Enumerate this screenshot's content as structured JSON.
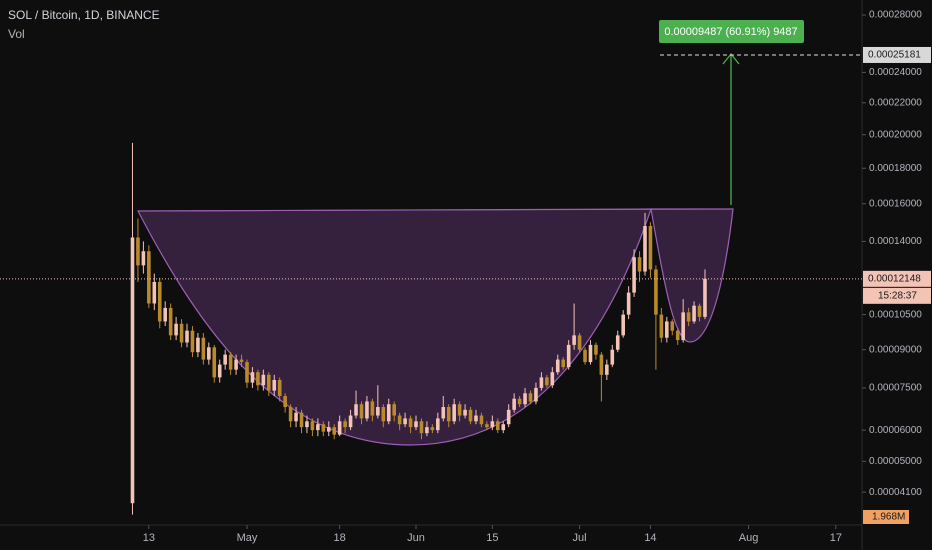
{
  "chart_data": {
    "type": "candlestick",
    "title": "SOL / Bitcoin, 1D, BINANCE",
    "volume_title": "Vol",
    "volume_label": "1.968M",
    "countdown": "15:28:37",
    "annotation": "0.00009487 (60.91%) 9487",
    "target_price": 0.00025181,
    "y_scale": "sqrt",
    "grid": false,
    "up_color": "#f3c3b6",
    "down_color": "#b98a2c",
    "ylim": [
      3.24e-05,
      0.000291
    ],
    "yticks": [
      {
        "value": 0.00028,
        "label": "0.00028000"
      },
      {
        "value": 0.00024,
        "label": "0.00024000"
      },
      {
        "value": 0.00022,
        "label": "0.00022000"
      },
      {
        "value": 0.0002,
        "label": "0.00020000"
      },
      {
        "value": 0.00018,
        "label": "0.00018000"
      },
      {
        "value": 0.00016,
        "label": "0.00016000"
      },
      {
        "value": 0.00014,
        "label": "0.00014000"
      },
      {
        "value": 0.000105,
        "label": "0.00010500"
      },
      {
        "value": 9e-05,
        "label": "0.00009000"
      },
      {
        "value": 7.5e-05,
        "label": "0.00007500"
      },
      {
        "value": 6e-05,
        "label": "0.00006000"
      },
      {
        "value": 5e-05,
        "label": "0.00005000"
      },
      {
        "value": 4.1e-05,
        "label": "0.00004100"
      }
    ],
    "xlim": [
      -24.3,
      133.8
    ],
    "xticks": [
      {
        "value": 3,
        "label": "13"
      },
      {
        "value": 21,
        "label": "May"
      },
      {
        "value": 38,
        "label": "18"
      },
      {
        "value": 52,
        "label": "Jun"
      },
      {
        "value": 66,
        "label": "15"
      },
      {
        "value": 82,
        "label": "Jul"
      },
      {
        "value": 95,
        "label": "14"
      },
      {
        "value": 113,
        "label": "Aug"
      },
      {
        "value": 129,
        "label": "17"
      }
    ],
    "candles": [
      [
        3.8e-05,
        0.000195,
        3.5e-05,
        0.000142
      ],
      [
        0.000142,
        0.000152,
        0.00012,
        0.000128
      ],
      [
        0.000128,
        0.00014,
        0.000124,
        0.000135
      ],
      [
        0.000135,
        0.000138,
        0.000108,
        0.00011
      ],
      [
        0.00011,
        0.000124,
        0.000107,
        0.00012
      ],
      [
        0.00012,
        0.000122,
        9.9e-05,
        0.000102
      ],
      [
        0.000102,
        0.000111,
        0.0001,
        0.000108
      ],
      [
        0.000108,
        0.00011,
        9.4e-05,
        9.6e-05
      ],
      [
        9.6e-05,
        0.000104,
        9.4e-05,
        0.000101
      ],
      [
        0.000101,
        0.000103,
        9.1e-05,
        9.3e-05
      ],
      [
        9.3e-05,
        0.000101,
        9.1e-05,
        9.8e-05
      ],
      [
        9.8e-05,
        0.0001,
        8.7e-05,
        8.9e-05
      ],
      [
        8.9e-05,
        9.7e-05,
        8.7e-05,
        9.5e-05
      ],
      [
        9.5e-05,
        9.7e-05,
        8.4e-05,
        8.6e-05
      ],
      [
        8.6e-05,
        9.3e-05,
        8.4e-05,
        9.1e-05
      ],
      [
        9.1e-05,
        9.2e-05,
        7.7e-05,
        7.9e-05
      ],
      [
        7.9e-05,
        8.6e-05,
        7.7e-05,
        8.4e-05
      ],
      [
        8.4e-05,
        9e-05,
        8.2e-05,
        8.8e-05
      ],
      [
        8.8e-05,
        8.9e-05,
        8e-05,
        8.2e-05
      ],
      [
        8.2e-05,
        8.8e-05,
        8e-05,
        8.6e-05
      ],
      [
        8.6e-05,
        8.8e-05,
        8.3e-05,
        8.5e-05
      ],
      [
        8.5e-05,
        8.6e-05,
        7.5e-05,
        7.7e-05
      ],
      [
        7.7e-05,
        8.3e-05,
        7.5e-05,
        8.1e-05
      ],
      [
        8.1e-05,
        8.2e-05,
        7.4e-05,
        7.6e-05
      ],
      [
        7.6e-05,
        8.2e-05,
        7.4e-05,
        8e-05
      ],
      [
        8e-05,
        8.1e-05,
        7.2e-05,
        7.4e-05
      ],
      [
        7.4e-05,
        8e-05,
        7.2e-05,
        7.8e-05
      ],
      [
        7.8e-05,
        7.9e-05,
        7e-05,
        7.2e-05
      ],
      [
        7.2e-05,
        7.3e-05,
        6.6e-05,
        6.8e-05
      ],
      [
        6.8e-05,
        6.9e-05,
        6.1e-05,
        6.3e-05
      ],
      [
        6.3e-05,
        6.8e-05,
        6.1e-05,
        6.6e-05
      ],
      [
        6.6e-05,
        6.7e-05,
        5.9e-05,
        6.1e-05
      ],
      [
        6.1e-05,
        6.5e-05,
        5.9e-05,
        6.3e-05
      ],
      [
        6.3e-05,
        6.4e-05,
        5.8e-05,
        6e-05
      ],
      [
        6e-05,
        6.4e-05,
        5.8e-05,
        6.2e-05
      ],
      [
        6.2e-05,
        6.3e-05,
        5.8e-05,
        5.95e-05
      ],
      [
        5.95e-05,
        6.3e-05,
        5.8e-05,
        6.1e-05
      ],
      [
        6.1e-05,
        6.2e-05,
        5.7e-05,
        5.85e-05
      ],
      [
        5.85e-05,
        6.5e-05,
        5.8e-05,
        6.3e-05
      ],
      [
        6.3e-05,
        6.4e-05,
        5.9e-05,
        6.1e-05
      ],
      [
        6.1e-05,
        6.7e-05,
        6e-05,
        6.5e-05
      ],
      [
        6.5e-05,
        7.4e-05,
        6.4e-05,
        6.9e-05
      ],
      [
        6.9e-05,
        7e-05,
        6.2e-05,
        6.4e-05
      ],
      [
        6.4e-05,
        7.2e-05,
        6.3e-05,
        7e-05
      ],
      [
        7e-05,
        7.1e-05,
        6.3e-05,
        6.5e-05
      ],
      [
        6.5e-05,
        7.6e-05,
        6.4e-05,
        6.8e-05
      ],
      [
        6.8e-05,
        6.9e-05,
        6.1e-05,
        6.3e-05
      ],
      [
        6.3e-05,
        7.1e-05,
        6.2e-05,
        6.9e-05
      ],
      [
        6.9e-05,
        7e-05,
        6.3e-05,
        6.5e-05
      ],
      [
        6.5e-05,
        6.6e-05,
        6e-05,
        6.2e-05
      ],
      [
        6.2e-05,
        6.6e-05,
        6.1e-05,
        6.4e-05
      ],
      [
        6.4e-05,
        6.5e-05,
        5.9e-05,
        6.1e-05
      ],
      [
        6.1e-05,
        6.5e-05,
        6e-05,
        6.3e-05
      ],
      [
        6.3e-05,
        6.4e-05,
        5.7e-05,
        5.9e-05
      ],
      [
        5.9e-05,
        6.3e-05,
        5.8e-05,
        6.1e-05
      ],
      [
        6.1e-05,
        6.2e-05,
        5.9e-05,
        6e-05
      ],
      [
        6e-05,
        6.6e-05,
        5.9e-05,
        6.4e-05
      ],
      [
        6.4e-05,
        7.2e-05,
        6.3e-05,
        6.8e-05
      ],
      [
        6.8e-05,
        6.9e-05,
        6.1e-05,
        6.3e-05
      ],
      [
        6.3e-05,
        7.1e-05,
        6.2e-05,
        6.9e-05
      ],
      [
        6.9e-05,
        7e-05,
        6.3e-05,
        6.5e-05
      ],
      [
        6.5e-05,
        6.9e-05,
        6.4e-05,
        6.7e-05
      ],
      [
        6.7e-05,
        6.8e-05,
        6.2e-05,
        6.3e-05
      ],
      [
        6.3e-05,
        6.7e-05,
        6.2e-05,
        6.5e-05
      ],
      [
        6.5e-05,
        6.6e-05,
        6.1e-05,
        6.2e-05
      ],
      [
        6.2e-05,
        6.3e-05,
        6e-05,
        6.1e-05
      ],
      [
        6.1e-05,
        6.5e-05,
        6e-05,
        6.3e-05
      ],
      [
        6.3e-05,
        6.4e-05,
        5.9e-05,
        6e-05
      ],
      [
        6e-05,
        6.3e-05,
        5.9e-05,
        6.2e-05
      ],
      [
        6.2e-05,
        6.9e-05,
        6.1e-05,
        6.7e-05
      ],
      [
        6.7e-05,
        7.3e-05,
        6.6e-05,
        7.1e-05
      ],
      [
        7.1e-05,
        7.2e-05,
        6.8e-05,
        6.9e-05
      ],
      [
        6.9e-05,
        7.5e-05,
        6.8e-05,
        7.3e-05
      ],
      [
        7.3e-05,
        7.4e-05,
        6.9e-05,
        7e-05
      ],
      [
        7e-05,
        7.7e-05,
        6.9e-05,
        7.5e-05
      ],
      [
        7.5e-05,
        8.1e-05,
        7.4e-05,
        7.9e-05
      ],
      [
        7.9e-05,
        8e-05,
        7.5e-05,
        7.6e-05
      ],
      [
        7.6e-05,
        8.3e-05,
        7.5e-05,
        8.1e-05
      ],
      [
        8.1e-05,
        8.8e-05,
        8e-05,
        8.6e-05
      ],
      [
        8.6e-05,
        8.7e-05,
        8.2e-05,
        8.3e-05
      ],
      [
        8.3e-05,
        9.4e-05,
        8.2e-05,
        9.2e-05
      ],
      [
        9.2e-05,
        0.00011,
        9e-05,
        9.6e-05
      ],
      [
        9.6e-05,
        9.7e-05,
        8.9e-05,
        9e-05
      ],
      [
        9e-05,
        9.1e-05,
        8.4e-05,
        8.5e-05
      ],
      [
        8.5e-05,
        9.4e-05,
        8.4e-05,
        9.2e-05
      ],
      [
        9.2e-05,
        9.3e-05,
        8.6e-05,
        8.8e-05
      ],
      [
        8.8e-05,
        8.9e-05,
        7e-05,
        8e-05
      ],
      [
        8e-05,
        8.6e-05,
        7.8e-05,
        8.4e-05
      ],
      [
        8.4e-05,
        9.2e-05,
        8.3e-05,
        9e-05
      ],
      [
        9e-05,
        9.8e-05,
        8.9e-05,
        9.6e-05
      ],
      [
        9.6e-05,
        0.000107,
        9.5e-05,
        0.000105
      ],
      [
        0.000105,
        0.000118,
        0.000103,
        0.000115
      ],
      [
        0.000115,
        0.000136,
        0.000113,
        0.000132
      ],
      [
        0.000132,
        0.000135,
        0.00012,
        0.000125
      ],
      [
        0.000125,
        0.000155,
        0.000123,
        0.000148
      ],
      [
        0.000148,
        0.00015,
        0.000122,
        0.000126
      ],
      [
        0.000126,
        0.000128,
        8.2e-05,
        0.000105
      ],
      [
        0.000105,
        0.000108,
        9.3e-05,
        9.5e-05
      ],
      [
        9.5e-05,
        0.000104,
        9.3e-05,
        0.000102
      ],
      [
        0.000102,
        0.000103,
        9.6e-05,
        9.8e-05
      ],
      [
        9.8e-05,
        9.9e-05,
        9.2e-05,
        9.4e-05
      ],
      [
        9.4e-05,
        0.000112,
        9.3e-05,
        0.000106
      ],
      [
        0.000106,
        0.000108,
        0.0001,
        0.000102
      ],
      [
        0.000102,
        0.000111,
        0.000101,
        0.000109
      ],
      [
        0.000109,
        0.00011,
        0.000102,
        0.000104
      ],
      [
        0.000104,
        0.000126,
        0.000103,
        0.00012148
      ]
    ]
  }
}
